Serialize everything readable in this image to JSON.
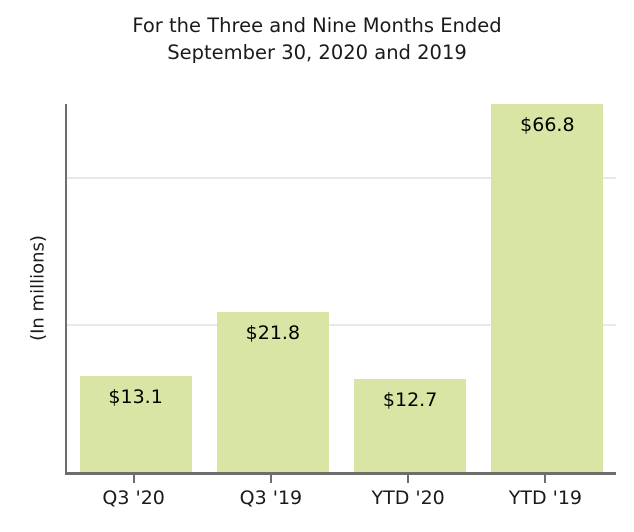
{
  "chart_data": {
    "type": "bar",
    "title": "For the Three and Nine Months Ended\nSeptember 30, 2020 and 2019",
    "ylabel": "(In millions)",
    "xlabel": "",
    "categories": [
      "Q3 '20",
      "Q3 '19",
      "YTD '20",
      "YTD '19"
    ],
    "values": [
      13.1,
      21.8,
      12.7,
      66.8
    ],
    "data_labels": [
      "$13.1",
      "$21.8",
      "$12.7",
      "$66.8"
    ],
    "ylim": [
      0,
      50
    ],
    "gridlines_y": [
      20,
      40
    ],
    "grid": "horizontal",
    "legend": "none",
    "y_tick_labels_visible": false,
    "bar_color": "#d9e5a4",
    "axis_color": "#6d6d6d",
    "gridline_color": "#e8e8e8",
    "text_color": "#1a1a1a"
  }
}
